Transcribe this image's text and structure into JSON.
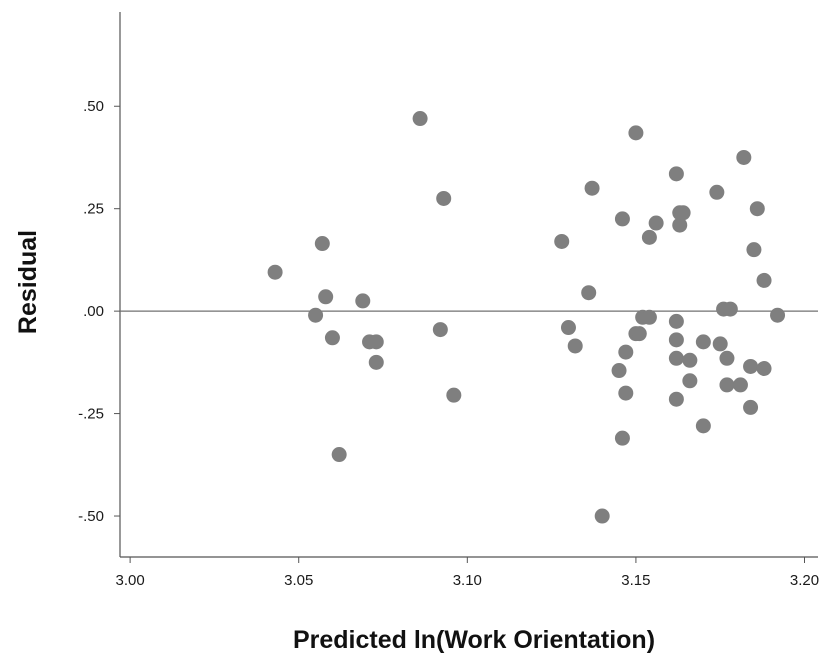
{
  "chart_data": {
    "type": "scatter",
    "xlabel": "Predicted ln(Work Orientation)",
    "ylabel": "Residual",
    "x_ticks": [
      3.0,
      3.05,
      3.1,
      3.15,
      3.2
    ],
    "x_tick_labels": [
      "3.00",
      "3.05",
      "3.10",
      "3.15",
      "3.20"
    ],
    "y_ticks": [
      0.5,
      0.25,
      0.0,
      -0.25,
      -0.5
    ],
    "y_tick_labels": [
      ".50",
      ".25",
      ".00",
      "-.25",
      "-.50"
    ],
    "xlim": [
      2.997,
      3.204
    ],
    "ylim": [
      -0.6,
      0.73
    ],
    "reference_line_y": 0.0,
    "grid": false,
    "marker_color": "#7f7f7f",
    "points": [
      {
        "x": 3.043,
        "y": 0.095
      },
      {
        "x": 3.057,
        "y": 0.165
      },
      {
        "x": 3.058,
        "y": 0.035
      },
      {
        "x": 3.055,
        "y": -0.01
      },
      {
        "x": 3.06,
        "y": -0.065
      },
      {
        "x": 3.062,
        "y": -0.35
      },
      {
        "x": 3.069,
        "y": 0.025
      },
      {
        "x": 3.071,
        "y": -0.075
      },
      {
        "x": 3.073,
        "y": -0.075
      },
      {
        "x": 3.073,
        "y": -0.125
      },
      {
        "x": 3.086,
        "y": 0.47
      },
      {
        "x": 3.092,
        "y": -0.045
      },
      {
        "x": 3.093,
        "y": 0.275
      },
      {
        "x": 3.096,
        "y": -0.205
      },
      {
        "x": 3.128,
        "y": 0.17
      },
      {
        "x": 3.13,
        "y": -0.04
      },
      {
        "x": 3.132,
        "y": -0.085
      },
      {
        "x": 3.136,
        "y": 0.045
      },
      {
        "x": 3.137,
        "y": 0.3
      },
      {
        "x": 3.14,
        "y": -0.5
      },
      {
        "x": 3.145,
        "y": -0.145
      },
      {
        "x": 3.146,
        "y": 0.225
      },
      {
        "x": 3.146,
        "y": -0.31
      },
      {
        "x": 3.147,
        "y": -0.1
      },
      {
        "x": 3.147,
        "y": -0.2
      },
      {
        "x": 3.15,
        "y": 0.435
      },
      {
        "x": 3.15,
        "y": -0.055
      },
      {
        "x": 3.152,
        "y": -0.015
      },
      {
        "x": 3.151,
        "y": -0.055
      },
      {
        "x": 3.154,
        "y": 0.18
      },
      {
        "x": 3.154,
        "y": -0.015
      },
      {
        "x": 3.156,
        "y": 0.215
      },
      {
        "x": 3.162,
        "y": 0.335
      },
      {
        "x": 3.162,
        "y": -0.025
      },
      {
        "x": 3.162,
        "y": -0.07
      },
      {
        "x": 3.162,
        "y": -0.115
      },
      {
        "x": 3.162,
        "y": -0.215
      },
      {
        "x": 3.163,
        "y": 0.24
      },
      {
        "x": 3.163,
        "y": 0.21
      },
      {
        "x": 3.164,
        "y": 0.24
      },
      {
        "x": 3.166,
        "y": -0.12
      },
      {
        "x": 3.166,
        "y": -0.17
      },
      {
        "x": 3.17,
        "y": -0.075
      },
      {
        "x": 3.17,
        "y": -0.28
      },
      {
        "x": 3.174,
        "y": 0.29
      },
      {
        "x": 3.175,
        "y": -0.08
      },
      {
        "x": 3.176,
        "y": 0.005
      },
      {
        "x": 3.178,
        "y": 0.005
      },
      {
        "x": 3.177,
        "y": -0.18
      },
      {
        "x": 3.177,
        "y": -0.115
      },
      {
        "x": 3.182,
        "y": 0.375
      },
      {
        "x": 3.181,
        "y": -0.18
      },
      {
        "x": 3.184,
        "y": -0.235
      },
      {
        "x": 3.184,
        "y": -0.135
      },
      {
        "x": 3.185,
        "y": 0.15
      },
      {
        "x": 3.186,
        "y": 0.25
      },
      {
        "x": 3.188,
        "y": 0.075
      },
      {
        "x": 3.188,
        "y": -0.14
      },
      {
        "x": 3.192,
        "y": -0.01
      }
    ]
  }
}
